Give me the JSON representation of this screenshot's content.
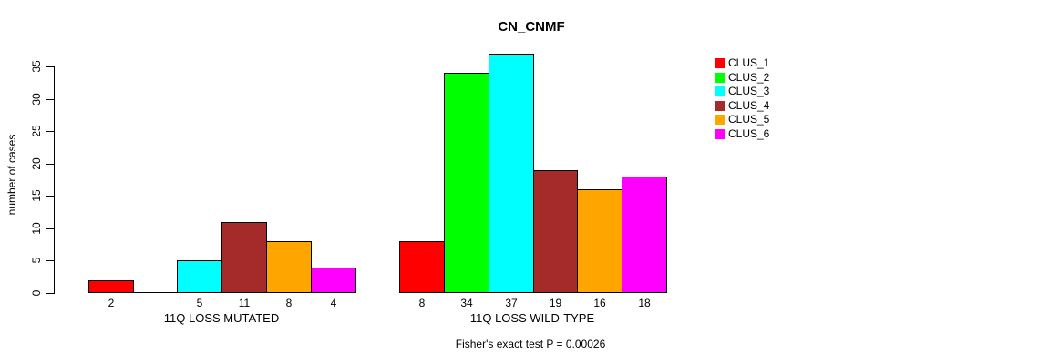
{
  "chart_data": {
    "type": "bar",
    "title": "CN_CNMF",
    "ylabel": "number of cases",
    "xlabel": "",
    "ylim": [
      0,
      35
    ],
    "yticks": [
      0,
      5,
      10,
      15,
      20,
      25,
      30,
      35
    ],
    "categories": [
      "11Q LOSS MUTATED",
      "11Q LOSS WILD-TYPE"
    ],
    "series": [
      {
        "name": "CLUS_1",
        "color": "#ff0000",
        "values": [
          2,
          8
        ]
      },
      {
        "name": "CLUS_2",
        "color": "#00ff00",
        "values": [
          0,
          34
        ]
      },
      {
        "name": "CLUS_3",
        "color": "#00ffff",
        "values": [
          5,
          37
        ]
      },
      {
        "name": "CLUS_4",
        "color": "#a52a2a",
        "values": [
          11,
          19
        ]
      },
      {
        "name": "CLUS_5",
        "color": "#ffa500",
        "values": [
          8,
          16
        ]
      },
      {
        "name": "CLUS_6",
        "color": "#ff00ff",
        "values": [
          4,
          18
        ]
      }
    ],
    "bar_value_labels": "values printed under each bar; zero-height bars show no label",
    "annotation": "Fisher's exact test P = 0.00026",
    "legend": {
      "position": "top-right",
      "entries": [
        "CLUS_1",
        "CLUS_2",
        "CLUS_3",
        "CLUS_4",
        "CLUS_5",
        "CLUS_6"
      ]
    },
    "grid": false,
    "background": "#ffffff",
    "text_color": "#000000",
    "bar_border_color": "#000000"
  }
}
